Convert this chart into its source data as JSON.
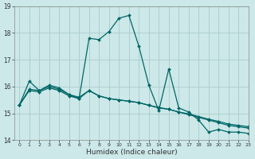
{
  "title": "",
  "xlabel": "Humidex (Indice chaleur)",
  "bg_color": "#cce8e8",
  "grid_color": "#aacccc",
  "line_color": "#006666",
  "xlim": [
    -0.5,
    23
  ],
  "ylim": [
    14,
    19
  ],
  "yticks": [
    14,
    15,
    16,
    17,
    18,
    19
  ],
  "xtick_labels": [
    "0",
    "1",
    "2",
    "3",
    "4",
    "5",
    "6",
    "7",
    "8",
    "9",
    "10",
    "11",
    "12",
    "13",
    "14",
    "15",
    "16",
    "17",
    "18",
    "19",
    "20",
    "21",
    "22",
    "23"
  ],
  "series1": [
    15.3,
    16.2,
    15.85,
    16.05,
    15.95,
    15.7,
    15.55,
    17.8,
    17.75,
    18.05,
    18.55,
    18.65,
    17.5,
    16.05,
    15.1,
    16.65,
    15.2,
    15.05,
    14.75,
    14.3,
    14.4,
    14.3,
    14.3,
    14.25
  ],
  "series2": [
    15.3,
    15.85,
    15.8,
    15.95,
    15.85,
    15.65,
    15.55,
    15.85,
    15.65,
    15.55,
    15.5,
    15.45,
    15.4,
    15.3,
    15.2,
    15.15,
    15.05,
    14.95,
    14.85,
    14.75,
    14.65,
    14.55,
    14.5,
    14.45
  ],
  "series3": [
    15.3,
    15.9,
    15.85,
    16.0,
    15.9,
    15.7,
    15.6,
    15.85,
    15.65,
    15.55,
    15.5,
    15.45,
    15.4,
    15.3,
    15.22,
    15.15,
    15.05,
    14.98,
    14.88,
    14.78,
    14.7,
    14.6,
    14.55,
    14.5
  ]
}
